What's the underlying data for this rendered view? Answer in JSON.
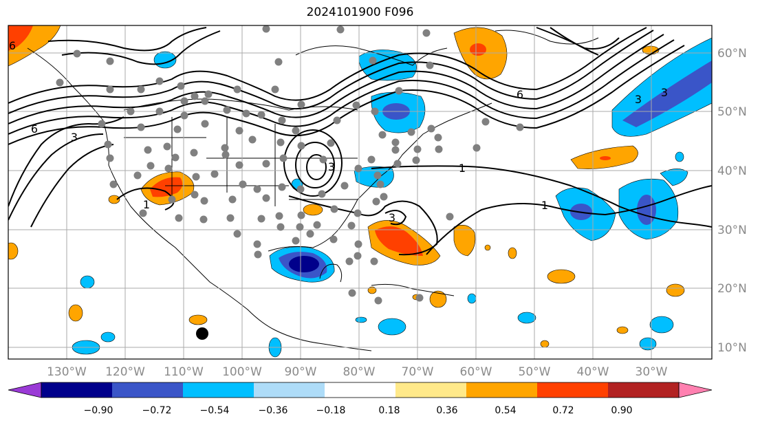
{
  "title": "2024101900 F096",
  "map": {
    "lon_labels": [
      "130°W",
      "120°W",
      "110°W",
      "100°W",
      "90°W",
      "80°W",
      "70°W",
      "60°W",
      "50°W",
      "40°W",
      "30°W"
    ],
    "lat_labels": [
      "60°N",
      "50°N",
      "40°N",
      "30°N",
      "20°N",
      "10°N"
    ],
    "gridlines": true
  },
  "contour_labels": [
    "6",
    "3",
    "1",
    "1",
    "1",
    "3",
    "3",
    "6",
    "3",
    "3",
    "6"
  ],
  "colorbar": {
    "ticks": [
      "−0.90",
      "−0.72",
      "−0.54",
      "−0.36",
      "−0.18",
      "0.18",
      "0.36",
      "0.54",
      "0.72",
      "0.90"
    ],
    "colors": [
      "#9a3ad6",
      "#00008b",
      "#3a55c8",
      "#00bfff",
      "#aedcf8",
      "#ffffff",
      "#ffe98a",
      "#ffa500",
      "#ff4000",
      "#b22222",
      "#ff80b0"
    ]
  }
}
